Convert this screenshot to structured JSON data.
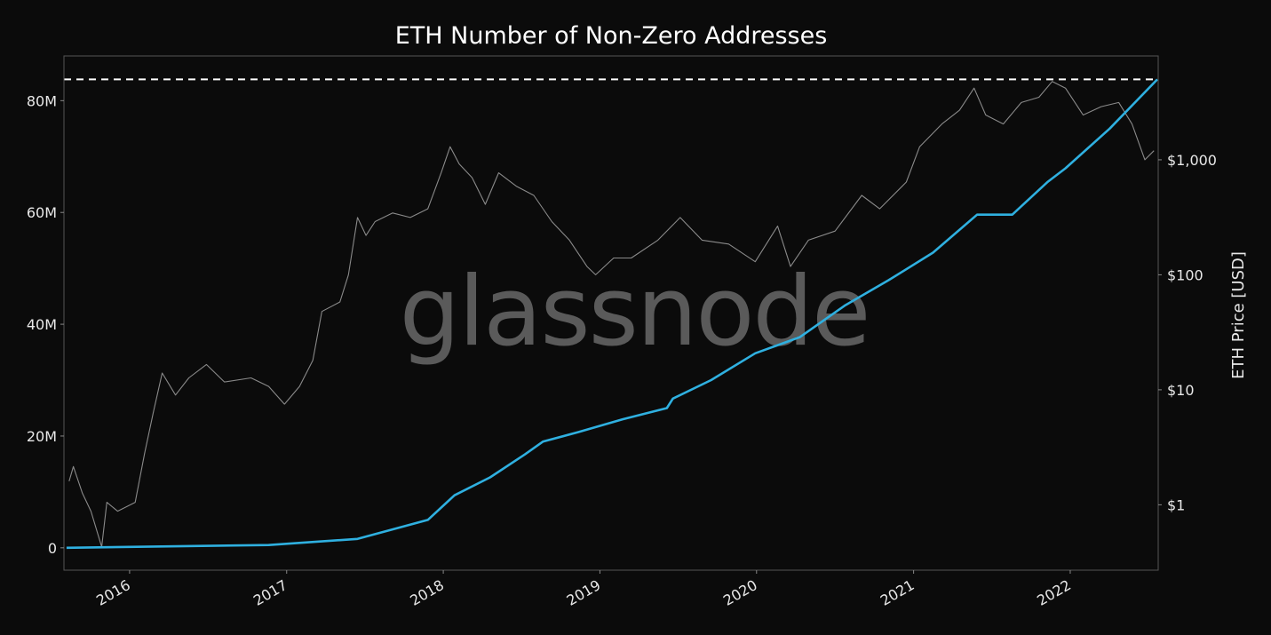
{
  "chart_data": {
    "type": "line",
    "title": "ETH Number of Non-Zero Addresses",
    "watermark": "glassnode",
    "xlabel": "",
    "ylabel_left": "",
    "ylabel_right": "ETH Price [USD]",
    "x_ticks": [
      "2016",
      "2017",
      "2018",
      "2019",
      "2020",
      "2021",
      "2022"
    ],
    "xlim": [
      "2015-08-01",
      "2022-07-25"
    ],
    "y_left": {
      "ticks": [
        0,
        20,
        40,
        60,
        80
      ],
      "tick_labels": [
        "0",
        "20M",
        "40M",
        "60M",
        "80M"
      ],
      "ylim": [
        -4,
        88
      ],
      "unit": "M"
    },
    "y_right": {
      "scale": "log",
      "ticks": [
        1,
        10,
        100,
        1000
      ],
      "tick_labels": [
        "$1",
        "$10",
        "$100",
        "$1,000"
      ],
      "ylim": [
        0.27,
        8000
      ]
    },
    "grid": false,
    "reference_line": {
      "value": 83.8,
      "style": "dashed",
      "color": "#ffffff"
    },
    "series": [
      {
        "axis": "left",
        "color": "#2fb0e0",
        "points": [
          [
            "2015-08-07",
            0
          ],
          [
            "2016-11-20",
            0.5
          ],
          [
            "2017-06-15",
            1.6
          ],
          [
            "2017-11-26",
            5
          ],
          [
            "2018-01-27",
            9.4
          ],
          [
            "2018-04-20",
            12.6
          ],
          [
            "2018-07-10",
            16.7
          ],
          [
            "2018-08-21",
            19
          ],
          [
            "2018-11-11",
            20.7
          ],
          [
            "2019-02-23",
            23
          ],
          [
            "2019-06-06",
            25
          ],
          [
            "2019-06-20",
            26.7
          ],
          [
            "2019-09-17",
            30
          ],
          [
            "2019-12-29",
            34.8
          ],
          [
            "2020-04-11",
            37.7
          ],
          [
            "2020-07-24",
            43.3
          ],
          [
            "2020-11-04",
            47.9
          ],
          [
            "2021-02-15",
            52.8
          ],
          [
            "2021-05-29",
            59.6
          ],
          [
            "2021-08-19",
            59.6
          ],
          [
            "2021-11-10",
            65.5
          ],
          [
            "2021-12-21",
            67.9
          ],
          [
            "2022-04-03",
            75
          ],
          [
            "2022-07-23",
            83.8
          ]
        ]
      },
      {
        "axis": "right",
        "color": "#8a8a8a",
        "points": [
          [
            "2015-08-13",
            1.6
          ],
          [
            "2015-08-23",
            2.15
          ],
          [
            "2015-09-13",
            1.26
          ],
          [
            "2015-10-03",
            0.88
          ],
          [
            "2015-10-28",
            0.43
          ],
          [
            "2015-11-09",
            1.05
          ],
          [
            "2015-12-04",
            0.88
          ],
          [
            "2016-01-14",
            1.05
          ],
          [
            "2016-02-05",
            2.8
          ],
          [
            "2016-02-25",
            6.3
          ],
          [
            "2016-03-17",
            14
          ],
          [
            "2016-04-17",
            9
          ],
          [
            "2016-05-18",
            12.7
          ],
          [
            "2016-06-28",
            16.6
          ],
          [
            "2016-08-09",
            11.7
          ],
          [
            "2016-10-10",
            12.7
          ],
          [
            "2016-11-20",
            10.7
          ],
          [
            "2016-12-27",
            7.5
          ],
          [
            "2017-01-31",
            10.7
          ],
          [
            "2017-03-03",
            18
          ],
          [
            "2017-03-24",
            48
          ],
          [
            "2017-05-05",
            58
          ],
          [
            "2017-05-25",
            100
          ],
          [
            "2017-06-15",
            315
          ],
          [
            "2017-07-05",
            220
          ],
          [
            "2017-07-26",
            290
          ],
          [
            "2017-09-05",
            345
          ],
          [
            "2017-10-16",
            315
          ],
          [
            "2017-11-26",
            375
          ],
          [
            "2017-12-27",
            770
          ],
          [
            "2018-01-17",
            1300
          ],
          [
            "2018-02-07",
            920
          ],
          [
            "2018-03-09",
            700
          ],
          [
            "2018-04-09",
            410
          ],
          [
            "2018-05-10",
            770
          ],
          [
            "2018-06-20",
            590
          ],
          [
            "2018-07-31",
            490
          ],
          [
            "2018-09-11",
            290
          ],
          [
            "2018-10-22",
            200
          ],
          [
            "2018-12-02",
            118
          ],
          [
            "2018-12-22",
            100
          ],
          [
            "2019-02-02",
            140
          ],
          [
            "2019-03-15",
            140
          ],
          [
            "2019-05-16",
            200
          ],
          [
            "2019-07-07",
            315
          ],
          [
            "2019-08-27",
            200
          ],
          [
            "2019-10-28",
            185
          ],
          [
            "2019-12-29",
            130
          ],
          [
            "2020-02-19",
            265
          ],
          [
            "2020-03-20",
            118
          ],
          [
            "2020-05-01",
            200
          ],
          [
            "2020-07-02",
            240
          ],
          [
            "2020-09-02",
            490
          ],
          [
            "2020-10-14",
            375
          ],
          [
            "2020-12-15",
            640
          ],
          [
            "2021-01-15",
            1300
          ],
          [
            "2021-03-08",
            2050
          ],
          [
            "2021-04-18",
            2700
          ],
          [
            "2021-05-22",
            4200
          ],
          [
            "2021-06-18",
            2450
          ],
          [
            "2021-07-29",
            2050
          ],
          [
            "2021-09-09",
            3150
          ],
          [
            "2021-10-20",
            3500
          ],
          [
            "2021-11-20",
            4800
          ],
          [
            "2021-12-21",
            4200
          ],
          [
            "2022-01-31",
            2450
          ],
          [
            "2022-03-14",
            2900
          ],
          [
            "2022-04-24",
            3150
          ],
          [
            "2022-05-25",
            2050
          ],
          [
            "2022-06-24",
            1000
          ],
          [
            "2022-07-15",
            1200
          ]
        ]
      }
    ]
  }
}
